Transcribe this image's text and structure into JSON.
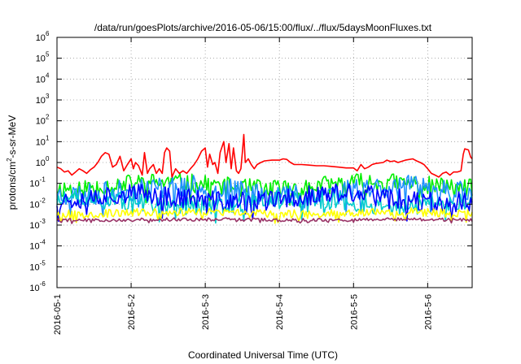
{
  "chart_data": {
    "type": "line",
    "title": "/data/run/goesPlots/archive/2016-05-06/15:00/flux/../flux/5daysMoonFluxes.txt",
    "xlabel": "Coordinated Universal Time (UTC)",
    "ylabel": {
      "base": "protons/cm",
      "sup": "2",
      "rest": "-s-sr-MeV"
    },
    "yscale": "log",
    "ylim": [
      1e-06,
      1000000.0
    ],
    "xlim": [
      0,
      5.6
    ],
    "x_ticks": [
      {
        "value": 0,
        "label": "2016-05-1"
      },
      {
        "value": 1,
        "label": "2016-5-2"
      },
      {
        "value": 2,
        "label": "2016-5-3"
      },
      {
        "value": 3,
        "label": "2016-5-4"
      },
      {
        "value": 4,
        "label": "2016-5-5"
      },
      {
        "value": 5,
        "label": "2016-5-6"
      }
    ],
    "y_ticks": [
      {
        "value": 1e-06,
        "base": "10",
        "exp": "-6"
      },
      {
        "value": 1e-05,
        "base": "10",
        "exp": "-5"
      },
      {
        "value": 0.0001,
        "base": "10",
        "exp": "-4"
      },
      {
        "value": 0.001,
        "base": "10",
        "exp": "-3"
      },
      {
        "value": 0.01,
        "base": "10",
        "exp": "-2"
      },
      {
        "value": 0.1,
        "base": "10",
        "exp": "-1"
      },
      {
        "value": 1,
        "base": "10",
        "exp": "0"
      },
      {
        "value": 10,
        "base": "10",
        "exp": "1"
      },
      {
        "value": 100,
        "base": "10",
        "exp": "2"
      },
      {
        "value": 1000,
        "base": "10",
        "exp": "3"
      },
      {
        "value": 10000,
        "base": "10",
        "exp": "4"
      },
      {
        "value": 100000,
        "base": "10",
        "exp": "5"
      },
      {
        "value": 1000000,
        "base": "10",
        "exp": "6"
      }
    ],
    "grid": true,
    "legend": "none",
    "series": [
      {
        "color": "#ff0000",
        "points": [
          [
            0.0,
            0.6
          ],
          [
            0.05,
            0.5
          ],
          [
            0.1,
            0.35
          ],
          [
            0.15,
            0.4
          ],
          [
            0.2,
            0.25
          ],
          [
            0.25,
            0.35
          ],
          [
            0.3,
            0.5
          ],
          [
            0.35,
            0.4
          ],
          [
            0.4,
            0.3
          ],
          [
            0.45,
            0.45
          ],
          [
            0.5,
            0.6
          ],
          [
            0.55,
            1.0
          ],
          [
            0.6,
            2.0
          ],
          [
            0.65,
            3.0
          ],
          [
            0.7,
            2.5
          ],
          [
            0.75,
            0.6
          ],
          [
            0.8,
            0.8
          ],
          [
            0.85,
            2.0
          ],
          [
            0.9,
            0.4
          ],
          [
            0.95,
            0.8
          ],
          [
            1.0,
            1.5
          ],
          [
            1.03,
            0.5
          ],
          [
            1.06,
            1.0
          ],
          [
            1.1,
            0.7
          ],
          [
            1.15,
            0.25
          ],
          [
            1.18,
            3.0
          ],
          [
            1.22,
            0.3
          ],
          [
            1.25,
            0.5
          ],
          [
            1.3,
            0.8
          ],
          [
            1.34,
            0.3
          ],
          [
            1.38,
            0.5
          ],
          [
            1.42,
            0.3
          ],
          [
            1.45,
            3.0
          ],
          [
            1.48,
            5.0
          ],
          [
            1.52,
            3.5
          ],
          [
            1.55,
            0.2
          ],
          [
            1.6,
            0.5
          ],
          [
            1.65,
            0.3
          ],
          [
            1.7,
            0.4
          ],
          [
            1.75,
            0.3
          ],
          [
            1.8,
            0.5
          ],
          [
            1.85,
            0.8
          ],
          [
            1.9,
            1.5
          ],
          [
            1.95,
            3.5
          ],
          [
            2.0,
            5.0
          ],
          [
            2.03,
            0.6
          ],
          [
            2.06,
            2.5
          ],
          [
            2.1,
            0.8
          ],
          [
            2.13,
            1.0
          ],
          [
            2.17,
            0.3
          ],
          [
            2.2,
            3.0
          ],
          [
            2.25,
            10.0
          ],
          [
            2.28,
            1.0
          ],
          [
            2.32,
            8.0
          ],
          [
            2.35,
            0.5
          ],
          [
            2.38,
            5.0
          ],
          [
            2.42,
            0.4
          ],
          [
            2.45,
            0.3
          ],
          [
            2.48,
            0.5
          ],
          [
            2.5,
            3.0
          ],
          [
            2.52,
            22.0
          ],
          [
            2.54,
            1.0
          ],
          [
            2.58,
            1.5
          ],
          [
            2.62,
            0.8
          ],
          [
            2.66,
            0.5
          ],
          [
            2.7,
            0.8
          ],
          [
            2.75,
            1.0
          ],
          [
            2.8,
            1.2
          ],
          [
            2.9,
            1.3
          ],
          [
            3.0,
            1.3
          ],
          [
            3.05,
            1.5
          ],
          [
            3.1,
            1.4
          ],
          [
            3.15,
            1.0
          ],
          [
            3.2,
            0.8
          ],
          [
            3.3,
            0.8
          ],
          [
            3.4,
            0.75
          ],
          [
            3.5,
            0.7
          ],
          [
            3.6,
            0.7
          ],
          [
            3.7,
            0.65
          ],
          [
            3.8,
            0.6
          ],
          [
            3.9,
            0.55
          ],
          [
            4.0,
            0.55
          ],
          [
            4.05,
            0.4
          ],
          [
            4.1,
            0.8
          ],
          [
            4.15,
            0.5
          ],
          [
            4.2,
            0.6
          ],
          [
            4.25,
            0.8
          ],
          [
            4.3,
            0.9
          ],
          [
            4.4,
            1.0
          ],
          [
            4.45,
            1.3
          ],
          [
            4.5,
            1.1
          ],
          [
            4.55,
            1.2
          ],
          [
            4.6,
            1.0
          ],
          [
            4.7,
            1.3
          ],
          [
            4.8,
            1.5
          ],
          [
            4.85,
            1.2
          ],
          [
            4.9,
            1.0
          ],
          [
            4.95,
            0.8
          ],
          [
            5.0,
            0.5
          ],
          [
            5.05,
            0.3
          ],
          [
            5.1,
            0.25
          ],
          [
            5.15,
            0.2
          ],
          [
            5.2,
            0.3
          ],
          [
            5.25,
            0.35
          ],
          [
            5.3,
            0.25
          ],
          [
            5.35,
            0.35
          ],
          [
            5.4,
            0.35
          ],
          [
            5.45,
            0.4
          ],
          [
            5.48,
            2.5
          ],
          [
            5.5,
            4.5
          ],
          [
            5.55,
            4.0
          ],
          [
            5.58,
            1.8
          ],
          [
            5.6,
            1.5
          ]
        ]
      },
      {
        "color": "#00ee00",
        "center": 0.08,
        "amp": 0.45,
        "seed": 11,
        "drift": 0.15
      },
      {
        "color": "#1e90ff",
        "center": 0.045,
        "amp": 0.55,
        "seed": 23,
        "drift": 0.2
      },
      {
        "color": "#0000ff",
        "center": 0.02,
        "amp": 0.5,
        "seed": 37,
        "drift": 0.2
      },
      {
        "color": "#00cccc",
        "center": 0.012,
        "amp": 0.45,
        "seed": 51,
        "drift": 0.15
      },
      {
        "color": "#ffff00",
        "center": 0.0038,
        "amp": 0.2,
        "seed": 67,
        "drift": 0.05
      },
      {
        "color": "#993366",
        "center": 0.0018,
        "amp": 0.08,
        "seed": 79,
        "drift": 0.02
      }
    ]
  }
}
